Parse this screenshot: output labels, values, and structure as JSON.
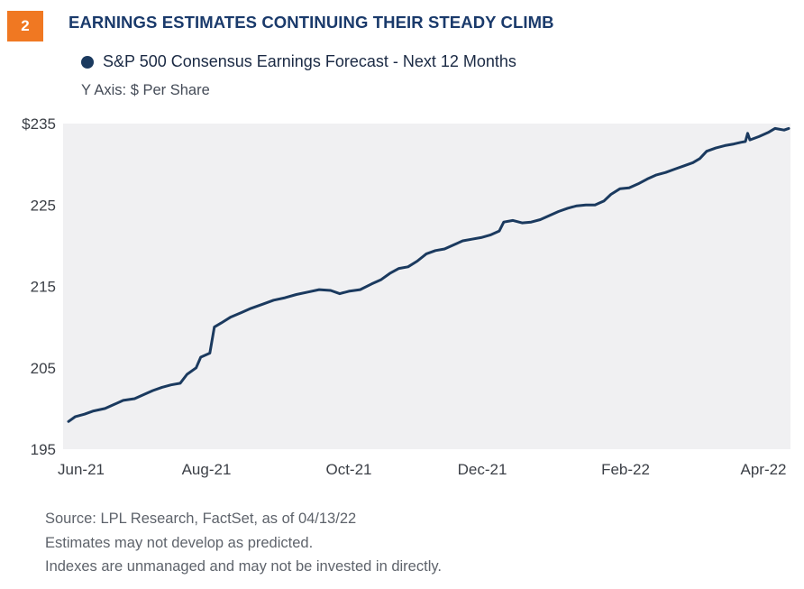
{
  "header": {
    "badge": "2",
    "title": "EARNINGS ESTIMATES CONTINUING THEIR STEADY CLIMB"
  },
  "legend": {
    "label": "S&P 500  Consensus Earnings Forecast - Next 12 Months"
  },
  "y_axis_note": "Y Axis: $ Per Share",
  "footnotes": {
    "source": "Source: LPL Research, FactSet, as of  04/13/22",
    "line2": "Estimates may not develop as predicted.",
    "line3": "Indexes are unmanaged and may not be invested in directly."
  },
  "colors": {
    "line": "#1b3a5f",
    "plot_background": "#f0f0f2",
    "badge": "#f07822",
    "title": "#1a3a6b"
  },
  "chart_data": {
    "type": "line",
    "ylim": [
      195,
      235
    ],
    "xlim": [
      "2021-06-01",
      "2022-04-13"
    ],
    "y_ticks": [
      {
        "value": 235,
        "label": "$235"
      },
      {
        "value": 225,
        "label": "225"
      },
      {
        "value": 215,
        "label": "215"
      },
      {
        "value": 205,
        "label": "205"
      },
      {
        "value": 195,
        "label": "195"
      }
    ],
    "x_ticks": [
      {
        "date": "2021-06-01",
        "label": "Jun-21"
      },
      {
        "date": "2021-08-01",
        "label": "Aug-21"
      },
      {
        "date": "2021-10-01",
        "label": "Oct-21"
      },
      {
        "date": "2021-12-01",
        "label": "Dec-21"
      },
      {
        "date": "2022-02-01",
        "label": "Feb-22"
      },
      {
        "date": "2022-04-01",
        "label": "Apr-22"
      }
    ],
    "grid": false,
    "series": [
      {
        "name": "S&P 500  Consensus Earnings Forecast - Next 12 Months",
        "points": [
          [
            "2021-06-01",
            198.4
          ],
          [
            "2021-06-04",
            199.0
          ],
          [
            "2021-06-08",
            199.3
          ],
          [
            "2021-06-12",
            199.7
          ],
          [
            "2021-06-17",
            200.0
          ],
          [
            "2021-06-21",
            200.5
          ],
          [
            "2021-06-25",
            201.0
          ],
          [
            "2021-06-30",
            201.2
          ],
          [
            "2021-07-04",
            201.7
          ],
          [
            "2021-07-08",
            202.2
          ],
          [
            "2021-07-12",
            202.6
          ],
          [
            "2021-07-16",
            202.9
          ],
          [
            "2021-07-20",
            203.1
          ],
          [
            "2021-07-23",
            204.2
          ],
          [
            "2021-07-27",
            205.0
          ],
          [
            "2021-07-29",
            206.3
          ],
          [
            "2021-08-02",
            206.8
          ],
          [
            "2021-08-04",
            210.0
          ],
          [
            "2021-08-07",
            210.5
          ],
          [
            "2021-08-11",
            211.2
          ],
          [
            "2021-08-16",
            211.8
          ],
          [
            "2021-08-20",
            212.3
          ],
          [
            "2021-08-25",
            212.8
          ],
          [
            "2021-08-30",
            213.3
          ],
          [
            "2021-09-04",
            213.6
          ],
          [
            "2021-09-09",
            214.0
          ],
          [
            "2021-09-14",
            214.3
          ],
          [
            "2021-09-19",
            214.6
          ],
          [
            "2021-09-24",
            214.5
          ],
          [
            "2021-09-28",
            214.1
          ],
          [
            "2021-10-02",
            214.4
          ],
          [
            "2021-10-07",
            214.6
          ],
          [
            "2021-10-12",
            215.3
          ],
          [
            "2021-10-16",
            215.8
          ],
          [
            "2021-10-20",
            216.6
          ],
          [
            "2021-10-24",
            217.2
          ],
          [
            "2021-10-28",
            217.4
          ],
          [
            "2021-11-01",
            218.1
          ],
          [
            "2021-11-05",
            219.0
          ],
          [
            "2021-11-09",
            219.4
          ],
          [
            "2021-11-13",
            219.6
          ],
          [
            "2021-11-17",
            220.1
          ],
          [
            "2021-11-21",
            220.6
          ],
          [
            "2021-11-25",
            220.8
          ],
          [
            "2021-11-29",
            221.0
          ],
          [
            "2021-12-03",
            221.3
          ],
          [
            "2021-12-07",
            221.8
          ],
          [
            "2021-12-09",
            222.9
          ],
          [
            "2021-12-13",
            223.1
          ],
          [
            "2021-12-17",
            222.8
          ],
          [
            "2021-12-21",
            222.9
          ],
          [
            "2021-12-25",
            223.2
          ],
          [
            "2021-12-29",
            223.7
          ],
          [
            "2022-01-02",
            224.2
          ],
          [
            "2022-01-06",
            224.6
          ],
          [
            "2022-01-10",
            224.9
          ],
          [
            "2022-01-14",
            225.0
          ],
          [
            "2022-01-18",
            225.0
          ],
          [
            "2022-01-22",
            225.5
          ],
          [
            "2022-01-25",
            226.3
          ],
          [
            "2022-01-29",
            227.0
          ],
          [
            "2022-02-02",
            227.1
          ],
          [
            "2022-02-06",
            227.6
          ],
          [
            "2022-02-10",
            228.2
          ],
          [
            "2022-02-14",
            228.7
          ],
          [
            "2022-02-18",
            229.0
          ],
          [
            "2022-02-22",
            229.4
          ],
          [
            "2022-02-26",
            229.8
          ],
          [
            "2022-03-02",
            230.2
          ],
          [
            "2022-03-05",
            230.7
          ],
          [
            "2022-03-08",
            231.6
          ],
          [
            "2022-03-12",
            232.0
          ],
          [
            "2022-03-16",
            232.3
          ],
          [
            "2022-03-20",
            232.5
          ],
          [
            "2022-03-23",
            232.7
          ],
          [
            "2022-03-25",
            232.8
          ],
          [
            "2022-03-26",
            233.8
          ],
          [
            "2022-03-27",
            233.0
          ],
          [
            "2022-03-31",
            233.4
          ],
          [
            "2022-04-04",
            233.9
          ],
          [
            "2022-04-07",
            234.4
          ],
          [
            "2022-04-11",
            234.2
          ],
          [
            "2022-04-13",
            234.4
          ]
        ]
      }
    ]
  }
}
